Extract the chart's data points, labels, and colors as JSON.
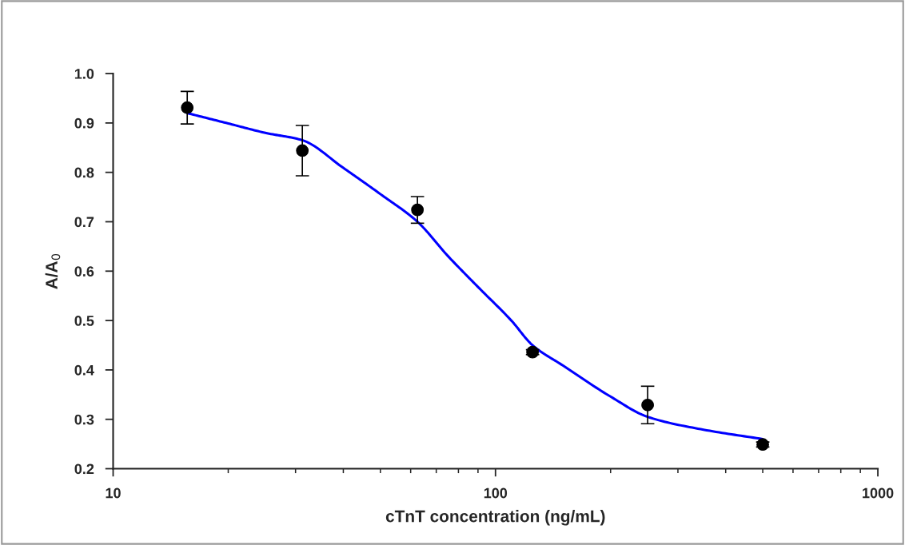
{
  "chart_data": {
    "type": "scatter",
    "xlabel": "cTnT concentration (ng/mL)",
    "ylabel": "A/A$_{0}$",
    "log": "x",
    "xlim": [
      10,
      1000
    ],
    "xticks": [
      10,
      100,
      1000
    ],
    "ylim": [
      0.2,
      1.0
    ],
    "yticks": [
      0.2,
      0.3,
      0.4,
      0.5,
      0.6,
      0.7,
      0.8,
      0.9,
      {
        "value": 1,
        "label": "1.0"
      }
    ],
    "grid": false,
    "legend": false,
    "series": [
      {
        "type": "line",
        "color": "#0000ff",
        "line_style": "solid",
        "marker": "none",
        "x": [
          15.625,
          20,
          25,
          31.25,
          40,
          50,
          62.5,
          75,
          90,
          110,
          125,
          150,
          200,
          250,
          350,
          500
        ],
        "values": [
          0.92,
          0.899,
          0.88,
          0.865,
          0.809,
          0.756,
          0.7,
          0.631,
          0.568,
          0.5,
          0.45,
          0.409,
          0.346,
          0.305,
          0.279,
          0.26
        ]
      },
      {
        "color": "#000000",
        "marker": "circle",
        "x": [
          15.625,
          31.25,
          62.5,
          125,
          250,
          500
        ],
        "values": [
          0.931,
          0.844,
          0.724,
          0.436,
          0.329,
          0.249
        ],
        "errors": [
          0.033,
          0.051,
          0.027,
          0.005,
          0.038,
          0.005
        ]
      }
    ]
  }
}
